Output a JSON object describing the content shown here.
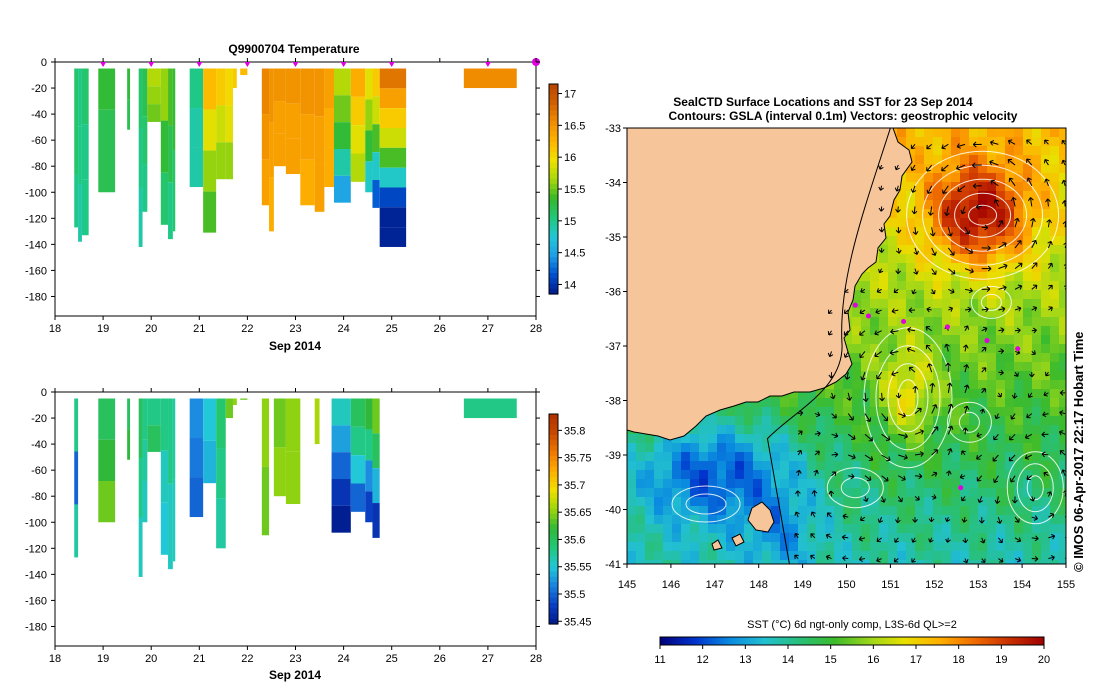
{
  "colors": {
    "temp_scale": [
      "#001a8a",
      "#0050d0",
      "#1e9ee6",
      "#22c8d8",
      "#20c878",
      "#35b82a",
      "#a8d80a",
      "#f0e000",
      "#ffb400",
      "#f08c00",
      "#d06000",
      "#b84400"
    ],
    "sal_scale": [
      "#001a8a",
      "#0a3fc4",
      "#1a82e0",
      "#22c8d8",
      "#22c878",
      "#2fb83a",
      "#9ed60a",
      "#f0e000",
      "#ffae00",
      "#f07800",
      "#c84800",
      "#b03000"
    ],
    "sst_scale": [
      "#00007a",
      "#0033cc",
      "#0a8ae0",
      "#22c0d0",
      "#28c078",
      "#3cbb2c",
      "#9ad61a",
      "#e8e000",
      "#ffb000",
      "#f06c00",
      "#c83000",
      "#a00000"
    ],
    "marker": "#e000e0",
    "land": "#f7c59a"
  },
  "chart_data": [
    {
      "type": "heatmap",
      "title": "Q9900704  Temperature",
      "xlabel": "Sep 2014",
      "ylabel": "",
      "xlim": [
        18,
        28
      ],
      "ylim": [
        -195,
        0
      ],
      "xticks": [
        "18",
        "19",
        "20",
        "21",
        "22",
        "23",
        "24",
        "25",
        "26",
        "27",
        "28"
      ],
      "yticks": [
        "0",
        "-20",
        "-40",
        "-60",
        "-80",
        "-100",
        "-120",
        "-140",
        "-160",
        "-180"
      ],
      "colorbar": {
        "min": 13.85,
        "max": 17.15,
        "ticks": [
          "17",
          "16.5",
          "16",
          "15.5",
          "15",
          "14.5",
          "14"
        ]
      },
      "markers_x": [
        19,
        20,
        21,
        22,
        23,
        24,
        25,
        27,
        28
      ],
      "profiles": [
        {
          "x0": 18.4,
          "x1": 18.48,
          "depth": 127,
          "values": [
            15.1,
            15.1,
            15.0
          ]
        },
        {
          "x0": 18.48,
          "x1": 18.56,
          "depth": 138,
          "values": [
            15.0,
            15.0,
            14.9
          ]
        },
        {
          "x0": 18.56,
          "x1": 18.7,
          "depth": 133,
          "values": [
            15.1,
            15.0,
            15.0
          ]
        },
        {
          "x0": 18.9,
          "x1": 19.25,
          "depth": 100,
          "values": [
            15.3,
            15.2,
            15.2
          ]
        },
        {
          "x0": 19.5,
          "x1": 19.56,
          "depth": 52,
          "values": [
            15.3,
            15.2
          ]
        },
        {
          "x0": 19.74,
          "x1": 19.82,
          "depth": 142,
          "values": [
            15.1,
            15.0,
            14.9
          ]
        },
        {
          "x0": 19.82,
          "x1": 19.92,
          "depth": 115,
          "values": [
            15.2,
            15.1,
            15.0
          ]
        },
        {
          "x0": 19.92,
          "x1": 20.2,
          "depth": 46,
          "values": [
            15.7,
            15.6,
            15.5
          ]
        },
        {
          "x0": 20.2,
          "x1": 20.35,
          "depth": 125,
          "values": [
            15.6,
            15.3,
            15.1
          ]
        },
        {
          "x0": 20.35,
          "x1": 20.45,
          "depth": 136,
          "values": [
            15.4,
            15.2,
            15.0
          ]
        },
        {
          "x0": 20.45,
          "x1": 20.5,
          "depth": 130,
          "values": [
            15.3,
            15.1
          ]
        },
        {
          "x0": 20.8,
          "x1": 21.08,
          "depth": 96,
          "values": [
            15.0,
            14.9,
            14.9
          ]
        },
        {
          "x0": 21.08,
          "x1": 21.35,
          "depth": 131,
          "values": [
            16.2,
            15.9,
            15.6,
            15.4
          ]
        },
        {
          "x0": 21.35,
          "x1": 21.55,
          "depth": 90,
          "values": [
            16.1,
            15.8,
            15.6
          ]
        },
        {
          "x0": 21.55,
          "x1": 21.7,
          "depth": 90,
          "values": [
            16.0,
            15.9,
            15.6
          ]
        },
        {
          "x0": 21.7,
          "x1": 21.78,
          "depth": 20,
          "values": [
            16.1
          ]
        },
        {
          "x0": 21.85,
          "x1": 22.0,
          "depth": 10,
          "values": [
            16.2
          ]
        },
        {
          "x0": 22.3,
          "x1": 22.45,
          "depth": 110,
          "values": [
            16.6,
            16.5,
            16.4
          ]
        },
        {
          "x0": 22.45,
          "x1": 22.55,
          "depth": 130,
          "values": [
            16.5,
            16.4,
            16.3
          ]
        },
        {
          "x0": 22.55,
          "x1": 22.8,
          "depth": 80,
          "values": [
            16.5,
            16.4,
            16.4
          ]
        },
        {
          "x0": 22.8,
          "x1": 23.1,
          "depth": 86,
          "values": [
            16.5,
            16.4,
            16.4
          ]
        },
        {
          "x0": 23.1,
          "x1": 23.4,
          "depth": 110,
          "values": [
            16.5,
            16.4,
            16.3
          ]
        },
        {
          "x0": 23.4,
          "x1": 23.6,
          "depth": 115,
          "values": [
            16.5,
            16.4,
            16.4
          ]
        },
        {
          "x0": 23.6,
          "x1": 23.8,
          "depth": 96,
          "values": [
            16.4,
            16.3,
            16.3
          ]
        },
        {
          "x0": 23.8,
          "x1": 24.15,
          "depth": 108,
          "values": [
            15.7,
            15.5,
            15.3,
            14.9,
            14.5
          ]
        },
        {
          "x0": 24.15,
          "x1": 24.45,
          "depth": 92,
          "values": [
            16.3,
            16.1,
            15.9,
            15.7
          ]
        },
        {
          "x0": 24.45,
          "x1": 24.6,
          "depth": 100,
          "values": [
            15.9,
            15.6,
            15.3,
            14.8
          ]
        },
        {
          "x0": 24.6,
          "x1": 24.75,
          "depth": 112,
          "values": [
            16.1,
            15.8,
            15.4,
            14.8,
            14.2
          ]
        },
        {
          "x0": 24.75,
          "x1": 25.3,
          "depth": 142,
          "values": [
            16.7,
            16.4,
            16.1,
            15.8,
            15.4,
            14.8,
            14.1,
            13.9,
            13.9
          ]
        },
        {
          "x0": 26.5,
          "x1": 27.6,
          "depth": 20,
          "values": [
            16.55
          ]
        }
      ]
    },
    {
      "type": "heatmap",
      "title": "",
      "xlabel": "Sep 2014",
      "ylabel": "",
      "xlim": [
        18,
        28
      ],
      "ylim": [
        -195,
        0
      ],
      "xticks": [
        "18",
        "19",
        "20",
        "21",
        "22",
        "23",
        "24",
        "25",
        "26",
        "27",
        "28"
      ],
      "yticks": [
        "0",
        "-20",
        "-40",
        "-60",
        "-80",
        "-100",
        "-120",
        "-140",
        "-160",
        "-180"
      ],
      "colorbar": {
        "min": 35.445,
        "max": 35.83,
        "ticks": [
          "35.8",
          "35.75",
          "35.7",
          "35.65",
          "35.6",
          "35.55",
          "35.5",
          "35.45"
        ]
      },
      "profiles": [
        {
          "x0": 18.4,
          "x1": 18.48,
          "depth": 127,
          "values": [
            35.58,
            35.5,
            35.57
          ]
        },
        {
          "x0": 18.9,
          "x1": 19.25,
          "depth": 100,
          "values": [
            35.6,
            35.62,
            35.64
          ]
        },
        {
          "x0": 19.5,
          "x1": 19.56,
          "depth": 52,
          "values": [
            35.6,
            35.62
          ]
        },
        {
          "x0": 19.74,
          "x1": 19.82,
          "depth": 142,
          "values": [
            35.6,
            35.58,
            35.56
          ]
        },
        {
          "x0": 19.82,
          "x1": 19.92,
          "depth": 100,
          "values": [
            35.58,
            35.57,
            35.56
          ]
        },
        {
          "x0": 19.92,
          "x1": 20.2,
          "depth": 46,
          "values": [
            35.58,
            35.6
          ]
        },
        {
          "x0": 20.2,
          "x1": 20.35,
          "depth": 125,
          "values": [
            35.58,
            35.56,
            35.55
          ]
        },
        {
          "x0": 20.35,
          "x1": 20.45,
          "depth": 136,
          "values": [
            35.58,
            35.56
          ]
        },
        {
          "x0": 20.45,
          "x1": 20.5,
          "depth": 130,
          "values": [
            35.57,
            35.56
          ]
        },
        {
          "x0": 20.8,
          "x1": 21.08,
          "depth": 96,
          "values": [
            35.52,
            35.51,
            35.5
          ]
        },
        {
          "x0": 21.08,
          "x1": 21.35,
          "depth": 70,
          "values": [
            35.55,
            35.54
          ]
        },
        {
          "x0": 21.35,
          "x1": 21.55,
          "depth": 120,
          "values": [
            35.59,
            35.58,
            35.57
          ]
        },
        {
          "x0": 21.55,
          "x1": 21.7,
          "depth": 20,
          "values": [
            35.64
          ]
        },
        {
          "x0": 21.7,
          "x1": 21.78,
          "depth": 10,
          "values": [
            35.65
          ]
        },
        {
          "x0": 21.85,
          "x1": 22.0,
          "depth": 6,
          "values": [
            35.64
          ]
        },
        {
          "x0": 22.3,
          "x1": 22.45,
          "depth": 110,
          "values": [
            35.65,
            35.64
          ]
        },
        {
          "x0": 22.55,
          "x1": 22.8,
          "depth": 80,
          "values": [
            35.64,
            35.65
          ]
        },
        {
          "x0": 22.8,
          "x1": 23.1,
          "depth": 86,
          "values": [
            35.65,
            35.65
          ]
        },
        {
          "x0": 23.4,
          "x1": 23.5,
          "depth": 40,
          "values": [
            35.66
          ]
        },
        {
          "x0": 23.75,
          "x1": 24.15,
          "depth": 108,
          "values": [
            35.56,
            35.53,
            35.5,
            35.47,
            35.45
          ]
        },
        {
          "x0": 24.15,
          "x1": 24.45,
          "depth": 92,
          "values": [
            35.6,
            35.58,
            35.55,
            35.5
          ]
        },
        {
          "x0": 24.45,
          "x1": 24.6,
          "depth": 100,
          "values": [
            35.62,
            35.58,
            35.52,
            35.48
          ]
        },
        {
          "x0": 24.6,
          "x1": 24.75,
          "depth": 112,
          "values": [
            35.64,
            35.6,
            35.54,
            35.47
          ]
        },
        {
          "x0": 26.5,
          "x1": 27.6,
          "depth": 20,
          "values": [
            35.58
          ]
        }
      ]
    },
    {
      "type": "heatmap",
      "title": "SealCTD Surface Locations and SST for 23 Sep 2014",
      "subtitle": "Contours: GSLA (interval 0.1m) Vectors: geostrophic velocity",
      "xlabel": "",
      "ylabel": "",
      "xlim": [
        145,
        155
      ],
      "ylim": [
        -41,
        -33
      ],
      "xticks": [
        "145",
        "146",
        "147",
        "148",
        "149",
        "150",
        "151",
        "152",
        "153",
        "154",
        "155"
      ],
      "yticks": [
        "-33",
        "-34",
        "-35",
        "-36",
        "-37",
        "-38",
        "-39",
        "-40",
        "-41"
      ],
      "side_label": "© IMOS 06-Apr-2017 22:17 Hobart Time",
      "colorbar": {
        "label": "SST (°C) 6d ngt-only comp, L3S-6d QL>=2",
        "min": 11,
        "max": 20,
        "ticks": [
          "11",
          "12",
          "13",
          "14",
          "15",
          "16",
          "17",
          "18",
          "19",
          "20"
        ]
      },
      "seal_locations": [
        {
          "lon": 150.2,
          "lat": -36.25
        },
        {
          "lon": 150.5,
          "lat": -36.45
        },
        {
          "lon": 151.3,
          "lat": -36.55
        },
        {
          "lon": 152.3,
          "lat": -36.65
        },
        {
          "lon": 153.2,
          "lat": -36.9
        },
        {
          "lon": 153.9,
          "lat": -37.05
        },
        {
          "lon": 152.6,
          "lat": -39.6
        }
      ]
    }
  ]
}
